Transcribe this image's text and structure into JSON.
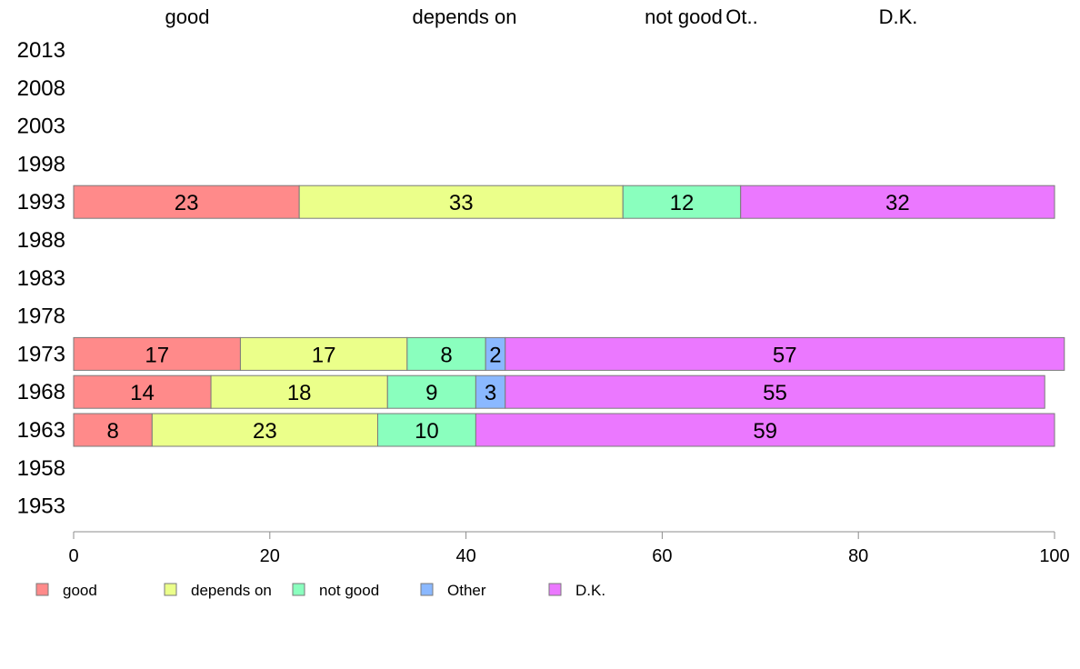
{
  "chart_data": {
    "type": "bar",
    "orientation": "horizontal",
    "stacked": true,
    "title": "",
    "xlabel": "",
    "ylabel": "",
    "xlim": [
      0,
      100
    ],
    "x_ticks": [
      0,
      20,
      40,
      60,
      80,
      100
    ],
    "categories": [
      "2013",
      "2008",
      "2003",
      "1998",
      "1993",
      "1988",
      "1983",
      "1978",
      "1973",
      "1968",
      "1963",
      "1958",
      "1953"
    ],
    "top_labels": [
      "good",
      "depends on",
      "not good",
      "Ot..",
      "D.K."
    ],
    "series": [
      {
        "name": "good",
        "color": "#FF8A8A",
        "values": [
          null,
          null,
          null,
          null,
          23,
          null,
          null,
          null,
          17,
          14,
          8,
          null,
          null
        ]
      },
      {
        "name": "depends on",
        "color": "#EBFF8A",
        "values": [
          null,
          null,
          null,
          null,
          33,
          null,
          null,
          null,
          17,
          18,
          23,
          null,
          null
        ]
      },
      {
        "name": "not good",
        "color": "#8AFFBE",
        "values": [
          null,
          null,
          null,
          null,
          12,
          null,
          null,
          null,
          8,
          9,
          10,
          null,
          null
        ]
      },
      {
        "name": "Other",
        "color": "#8AB8FF",
        "values": [
          null,
          null,
          null,
          null,
          0,
          null,
          null,
          null,
          2,
          3,
          0,
          null,
          null
        ]
      },
      {
        "name": "D.K.",
        "color": "#EB78FF",
        "values": [
          null,
          null,
          null,
          null,
          32,
          null,
          null,
          null,
          57,
          55,
          59,
          null,
          null
        ]
      }
    ],
    "legend": {
      "position": "bottom-left",
      "entries": [
        "good",
        "depends on",
        "not good",
        "Other",
        "D.K."
      ]
    }
  }
}
